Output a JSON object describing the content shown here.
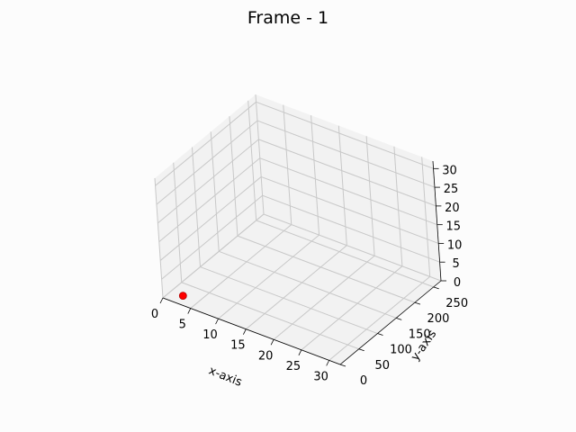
{
  "chart_data": {
    "type": "scatter",
    "title": "Frame - 1",
    "xlabel": "x-axis",
    "ylabel": "y-axis",
    "zlabel": "",
    "xlim": [
      0,
      32
    ],
    "ylim": [
      0,
      270
    ],
    "zlim": [
      0,
      32
    ],
    "x_ticks": [
      0,
      5,
      10,
      15,
      20,
      25,
      30
    ],
    "y_ticks": [
      0,
      50,
      100,
      150,
      200,
      250
    ],
    "z_ticks": [
      0,
      5,
      10,
      15,
      20,
      25,
      30
    ],
    "grid": true,
    "points": [
      {
        "x": 2,
        "y": 0,
        "z": 0
      }
    ],
    "point_color": "#ff0000"
  }
}
